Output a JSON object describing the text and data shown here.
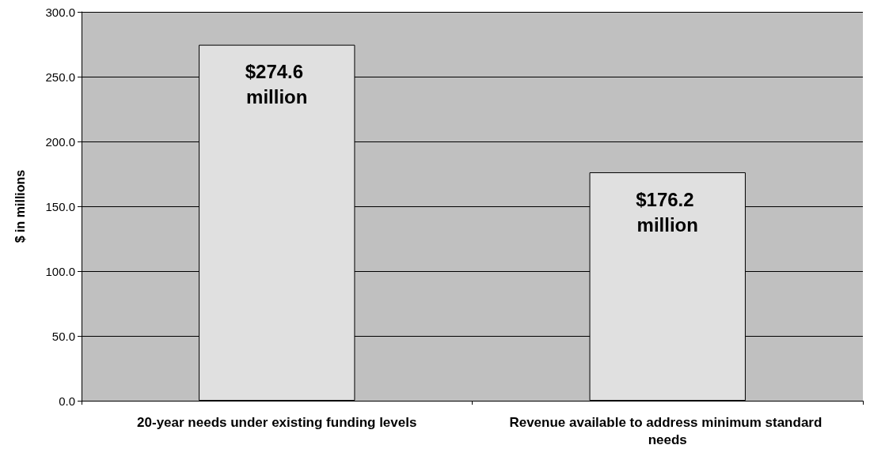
{
  "chart_data": {
    "type": "bar",
    "ylabel": "$ in millions",
    "categories": [
      "20-year needs under existing funding levels",
      "Revenue available to address minimum standard needs"
    ],
    "series": [
      {
        "color": "#e0e0e0",
        "values": [
          274.6,
          176.2
        ],
        "value_labels": [
          "$274.6 million",
          "$176.2 million"
        ]
      }
    ],
    "ylim": [
      0,
      300
    ],
    "yticks": [
      {
        "value": 0,
        "label": "0.0"
      },
      {
        "value": 50,
        "label": "50.0"
      },
      {
        "value": 100,
        "label": "100.0"
      },
      {
        "value": 150,
        "label": "150.0"
      },
      {
        "value": 200,
        "label": "200.0"
      },
      {
        "value": 250,
        "label": "250.0"
      },
      {
        "value": 300,
        "label": "300.0"
      }
    ],
    "grid": "y"
  }
}
